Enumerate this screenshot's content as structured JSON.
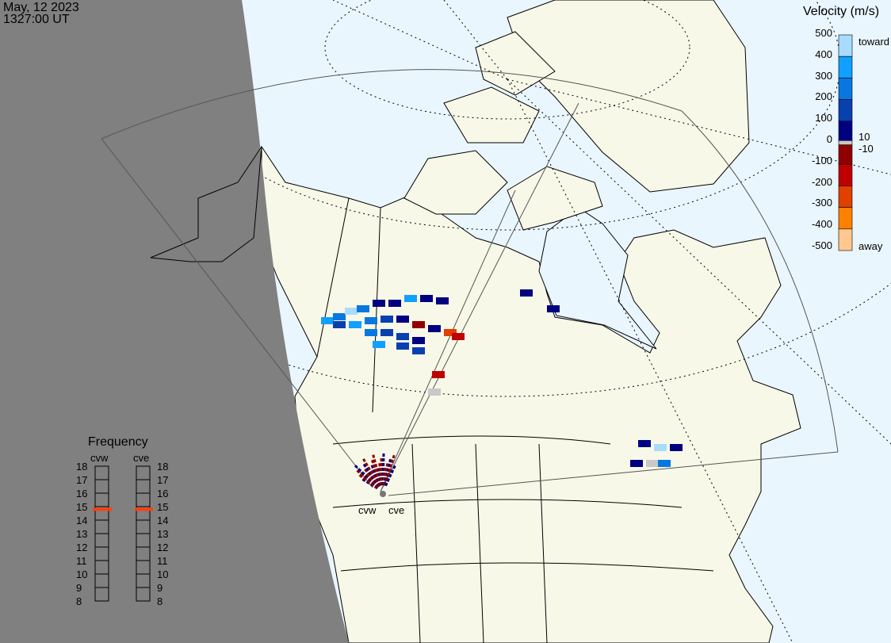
{
  "header": {
    "date": "May, 12 2023",
    "time": "1327:00 UT"
  },
  "colors": {
    "ocean": "#eaf6fe",
    "land": "#f8f8e8",
    "night": "#808080",
    "frequency_marker": "#ff4010"
  },
  "velocity_legend": {
    "title": "Velocity (m/s)",
    "ticks": [
      "500",
      "400",
      "300",
      "200",
      "100",
      "0",
      "-100",
      "-200",
      "-300",
      "-400",
      "-500"
    ],
    "toward_label": "toward",
    "away_label": "away",
    "gs_upper": "10",
    "gs_lower": "-10",
    "segments": [
      {
        "from": 500,
        "to": 400,
        "color": "#a8dcff"
      },
      {
        "from": 400,
        "to": 300,
        "color": "#10a0ff"
      },
      {
        "from": 300,
        "to": 200,
        "color": "#0878e0"
      },
      {
        "from": 200,
        "to": 100,
        "color": "#0840b0"
      },
      {
        "from": 100,
        "to": 10,
        "color": "#000080"
      },
      {
        "from": 10,
        "to": -10,
        "color": "#c8c8c8"
      },
      {
        "from": -10,
        "to": -100,
        "color": "#900000"
      },
      {
        "from": -100,
        "to": -200,
        "color": "#c00000"
      },
      {
        "from": -200,
        "to": -300,
        "color": "#e04000"
      },
      {
        "from": -300,
        "to": -400,
        "color": "#ff8000"
      },
      {
        "from": -400,
        "to": -500,
        "color": "#ffc890"
      }
    ]
  },
  "frequency_panel": {
    "title": "Frequency",
    "radars": [
      {
        "name": "cvw",
        "frequency_mhz": 14.8
      },
      {
        "name": "cve",
        "frequency_mhz": 14.8
      }
    ],
    "ticks": [
      "18",
      "17",
      "16",
      "15",
      "14",
      "13",
      "12",
      "11",
      "10",
      "9",
      "8"
    ]
  },
  "radar_sites": {
    "cvw": "cvw",
    "cve": "cve"
  }
}
